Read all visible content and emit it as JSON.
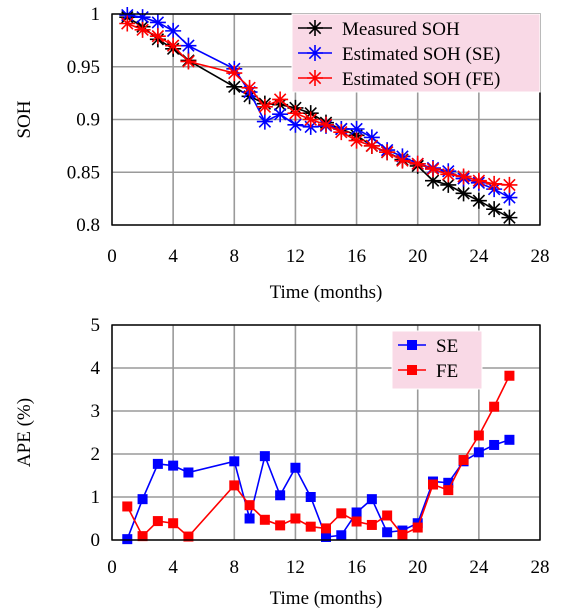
{
  "chart_data": [
    {
      "type": "line",
      "title": "",
      "xlabel": "Time (months)",
      "ylabel": "SOH",
      "xlim": [
        0,
        28
      ],
      "ylim": [
        0.8,
        1.0
      ],
      "xticks": [
        "0",
        "4",
        "8",
        "12",
        "16",
        "20",
        "24",
        "28"
      ],
      "yticks": [
        "0.8",
        "0.85",
        "0.9",
        "0.95",
        "1"
      ],
      "grid": true,
      "legend_position": "top-right",
      "legend_background": "#f9d9e6",
      "series": [
        {
          "name": "Measured SOH",
          "color": "#000000",
          "marker": "asterisk",
          "x": [
            1,
            2,
            3,
            4,
            5,
            8,
            9,
            10,
            11,
            12,
            13,
            14,
            15,
            16,
            17,
            18,
            19,
            20,
            21,
            22,
            23,
            24,
            25,
            26
          ],
          "y": [
            0.997,
            0.988,
            0.976,
            0.967,
            0.956,
            0.931,
            0.922,
            0.915,
            0.914,
            0.911,
            0.906,
            0.897,
            0.891,
            0.885,
            0.875,
            0.869,
            0.862,
            0.856,
            0.842,
            0.838,
            0.83,
            0.823,
            0.815,
            0.807
          ]
        },
        {
          "name": "Estimated SOH (SE)",
          "color": "#0000ff",
          "marker": "asterisk",
          "x": [
            1,
            2,
            3,
            4,
            5,
            8,
            9,
            10,
            11,
            12,
            13,
            14,
            15,
            16,
            17,
            18,
            19,
            20,
            21,
            22,
            23,
            24,
            25,
            26
          ],
          "y": [
            0.999,
            0.997,
            0.992,
            0.984,
            0.97,
            0.948,
            0.926,
            0.898,
            0.905,
            0.895,
            0.893,
            0.894,
            0.891,
            0.891,
            0.883,
            0.871,
            0.865,
            0.858,
            0.854,
            0.851,
            0.844,
            0.84,
            0.834,
            0.826
          ]
        },
        {
          "name": "Estimated SOH (FE)",
          "color": "#ff0000",
          "marker": "asterisk",
          "x": [
            1,
            2,
            3,
            4,
            5,
            8,
            9,
            10,
            11,
            12,
            13,
            14,
            15,
            16,
            17,
            18,
            19,
            20,
            21,
            22,
            23,
            24,
            25,
            26
          ],
          "y": [
            0.991,
            0.985,
            0.979,
            0.97,
            0.955,
            0.944,
            0.93,
            0.912,
            0.919,
            0.906,
            0.9,
            0.895,
            0.888,
            0.88,
            0.875,
            0.869,
            0.861,
            0.858,
            0.853,
            0.848,
            0.846,
            0.842,
            0.839,
            0.838
          ]
        }
      ]
    },
    {
      "type": "line",
      "title": "",
      "xlabel": "Time (months)",
      "ylabel": "APE (%)",
      "xlim": [
        0,
        28
      ],
      "ylim": [
        0,
        5
      ],
      "xticks": [
        "0",
        "4",
        "8",
        "12",
        "16",
        "20",
        "24",
        "28"
      ],
      "yticks": [
        "0",
        "1",
        "2",
        "3",
        "4",
        "5"
      ],
      "grid": true,
      "legend_position": "top-right",
      "legend_background": "#f9d9e6",
      "series": [
        {
          "name": "SE",
          "color": "#0000ff",
          "marker": "square",
          "x": [
            1,
            2,
            3,
            4,
            5,
            8,
            9,
            10,
            11,
            12,
            13,
            14,
            15,
            16,
            17,
            18,
            19,
            20,
            21,
            22,
            23,
            24,
            25,
            26
          ],
          "y": [
            0.02,
            0.95,
            1.77,
            1.73,
            1.57,
            1.83,
            0.5,
            1.95,
            1.04,
            1.68,
            1.0,
            0.07,
            0.11,
            0.64,
            0.95,
            0.18,
            0.22,
            0.39,
            1.36,
            1.33,
            1.83,
            2.04,
            2.21,
            2.33
          ]
        },
        {
          "name": "FE",
          "color": "#ff0000",
          "marker": "square",
          "x": [
            1,
            2,
            3,
            4,
            5,
            8,
            9,
            10,
            11,
            12,
            13,
            14,
            15,
            16,
            17,
            18,
            19,
            20,
            21,
            22,
            23,
            24,
            25,
            26
          ],
          "y": [
            0.78,
            0.09,
            0.44,
            0.39,
            0.08,
            1.27,
            0.81,
            0.47,
            0.34,
            0.5,
            0.31,
            0.27,
            0.62,
            0.43,
            0.35,
            0.57,
            0.12,
            0.29,
            1.29,
            1.16,
            1.86,
            2.43,
            3.1,
            3.82
          ]
        }
      ]
    }
  ]
}
